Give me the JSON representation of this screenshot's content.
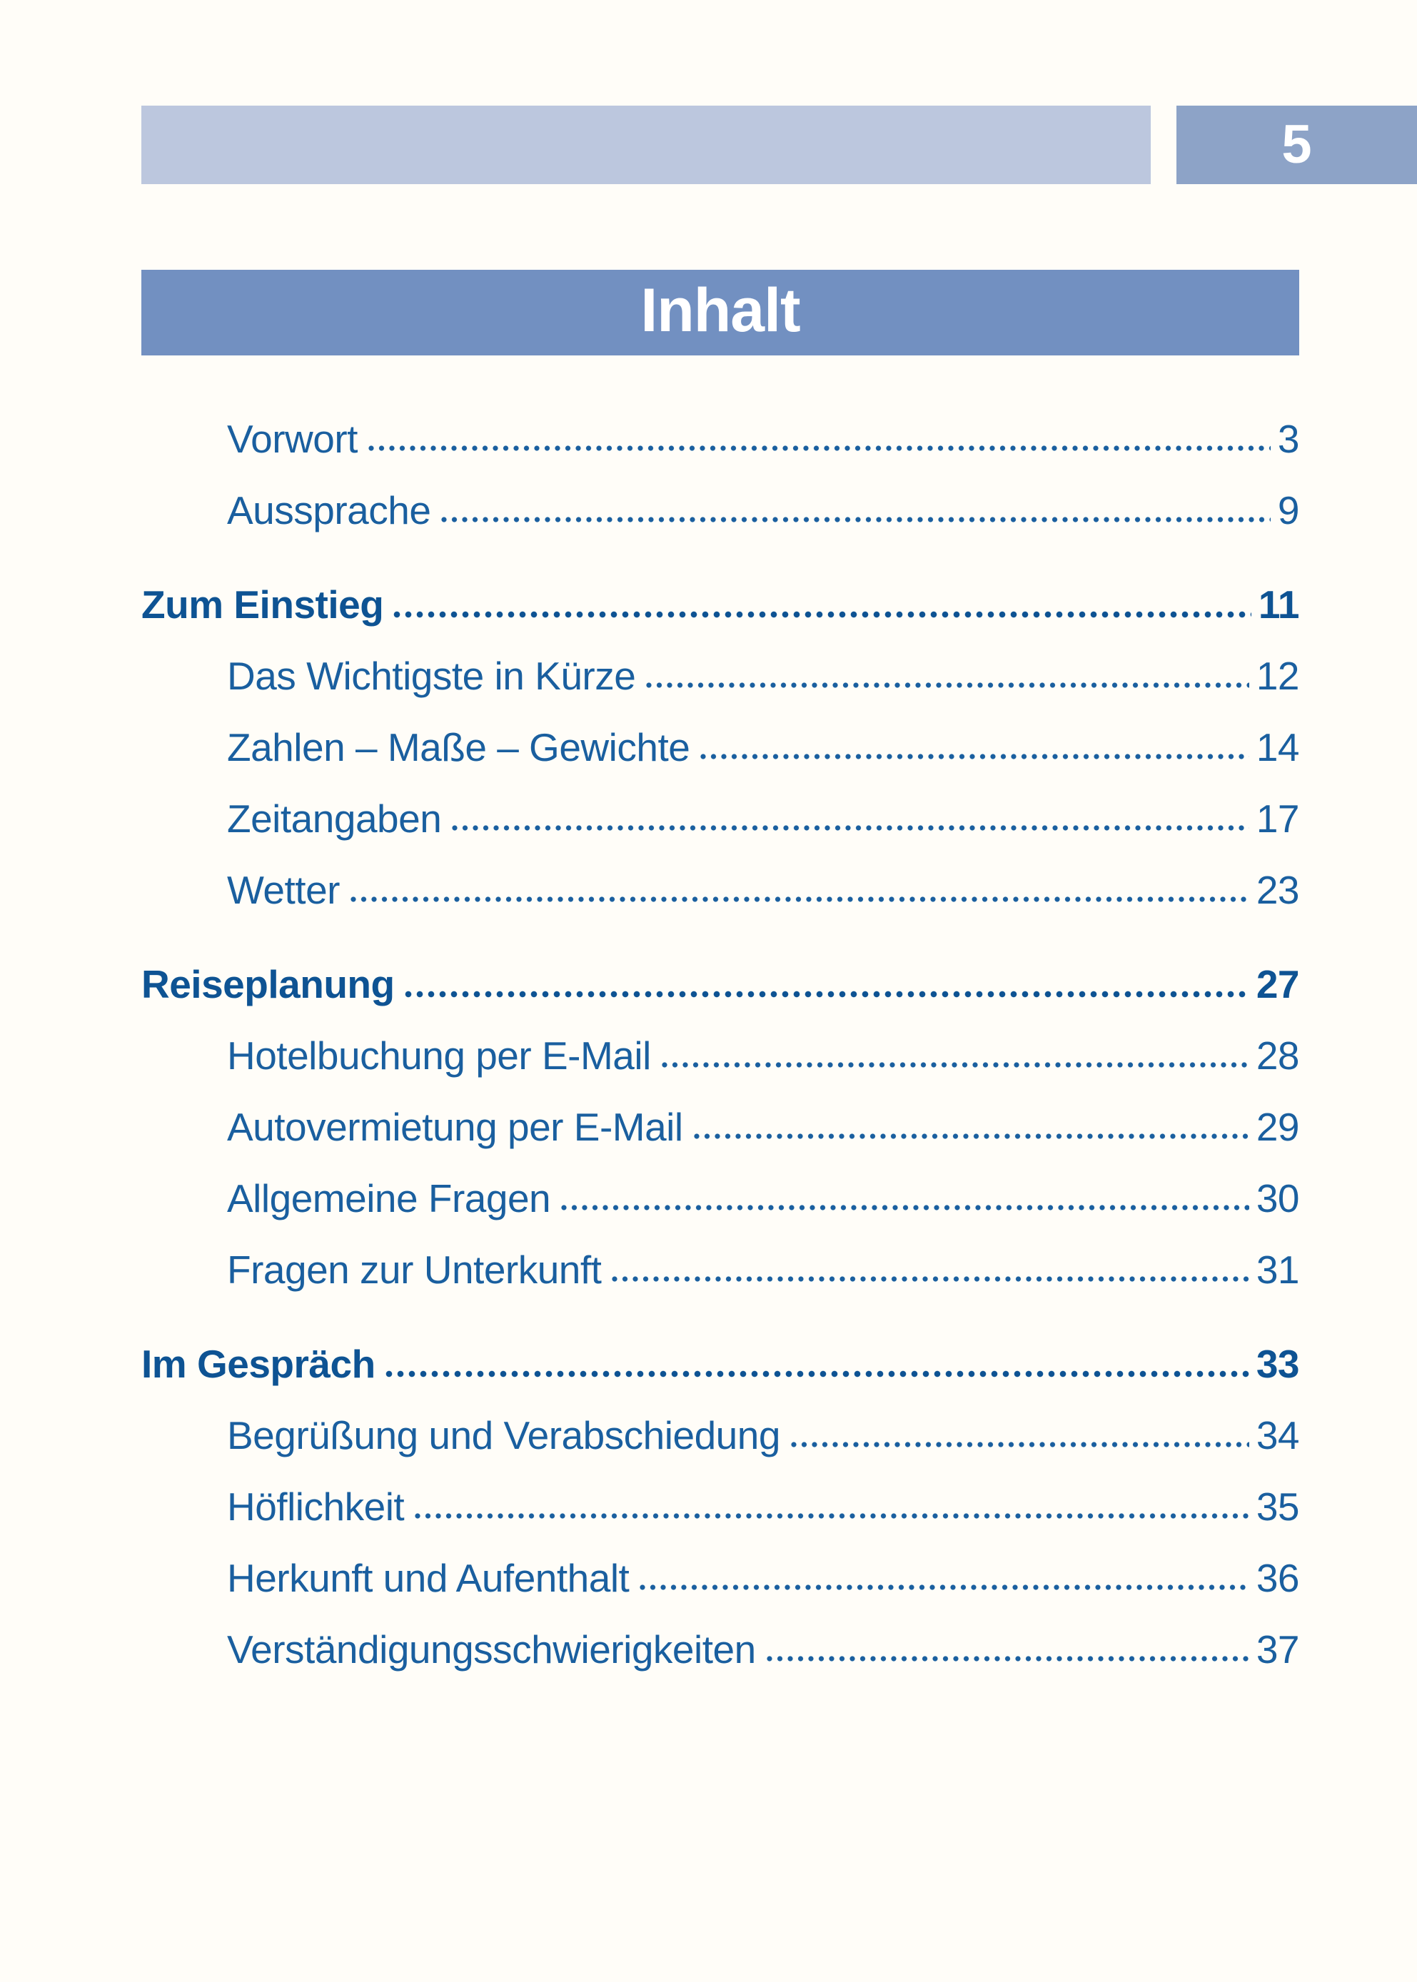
{
  "page": {
    "number": "5",
    "title": "Inhalt"
  },
  "colors": {
    "header_bar": "#bcc7de",
    "page_number_box": "#8da3c7",
    "title_bar": "#7290c1",
    "entry_text": "#1a5f9f",
    "section_text": "#0e5393"
  },
  "toc": {
    "entries": [
      {
        "label": "Vorwort",
        "page": "3",
        "level": "sub"
      },
      {
        "label": "Aussprache",
        "page": "9",
        "level": "sub"
      },
      {
        "label": "Zum Einstieg",
        "page": "11",
        "level": "section"
      },
      {
        "label": "Das Wichtigste in Kürze",
        "page": "12",
        "level": "sub"
      },
      {
        "label": "Zahlen – Maße – Gewichte",
        "page": "14",
        "level": "sub"
      },
      {
        "label": "Zeitangaben",
        "page": "17",
        "level": "sub"
      },
      {
        "label": "Wetter",
        "page": "23",
        "level": "sub"
      },
      {
        "label": "Reiseplanung",
        "page": "27",
        "level": "section"
      },
      {
        "label": "Hotelbuchung per E-Mail",
        "page": "28",
        "level": "sub"
      },
      {
        "label": "Autovermietung per E-Mail",
        "page": "29",
        "level": "sub"
      },
      {
        "label": "Allgemeine Fragen",
        "page": "30",
        "level": "sub"
      },
      {
        "label": "Fragen zur Unterkunft",
        "page": "31",
        "level": "sub"
      },
      {
        "label": "Im Gespräch",
        "page": "33",
        "level": "section"
      },
      {
        "label": "Begrüßung und Verabschiedung",
        "page": "34",
        "level": "sub"
      },
      {
        "label": "Höflichkeit",
        "page": "35",
        "level": "sub"
      },
      {
        "label": "Herkunft und Aufenthalt",
        "page": "36",
        "level": "sub"
      },
      {
        "label": "Verständigungsschwierigkeiten",
        "page": "37",
        "level": "sub"
      }
    ]
  }
}
